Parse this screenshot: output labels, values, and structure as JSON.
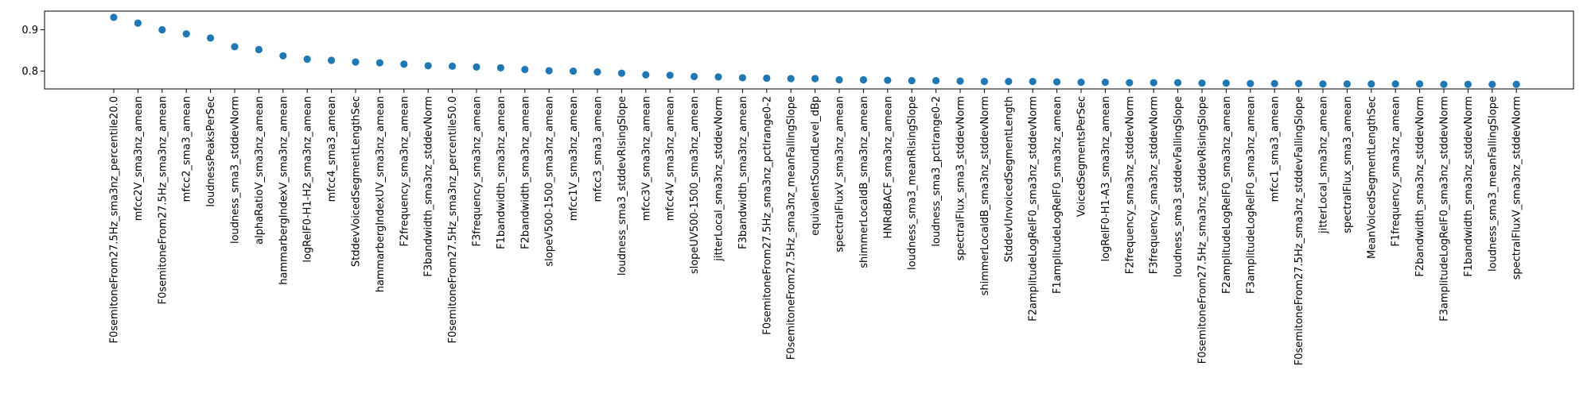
{
  "chart_data": {
    "type": "scatter",
    "title": "",
    "xlabel": "",
    "ylabel": "",
    "ylim": [
      0.757,
      0.945
    ],
    "yticks": [
      0.8,
      0.9
    ],
    "ytick_labels": [
      "0.8",
      "0.9"
    ],
    "grid": false,
    "legend": "none",
    "marker_color": "#1f77b4",
    "categories": [
      "F0semitoneFrom27.5Hz_sma3nz_percentile20.0",
      "mfcc2V_sma3nz_amean",
      "F0semitoneFrom27.5Hz_sma3nz_amean",
      "mfcc2_sma3_amean",
      "loudnessPeaksPerSec",
      "loudness_sma3_stddevNorm",
      "alphaRatioV_sma3nz_amean",
      "hammarbergIndexV_sma3nz_amean",
      "logRelF0-H1-H2_sma3nz_amean",
      "mfcc4_sma3_amean",
      "StddevVoicedSegmentLengthSec",
      "hammarbergIndexUV_sma3nz_amean",
      "F2frequency_sma3nz_amean",
      "F3bandwidth_sma3nz_stddevNorm",
      "F0semitoneFrom27.5Hz_sma3nz_percentile50.0",
      "F3frequency_sma3nz_amean",
      "F1bandwidth_sma3nz_amean",
      "F2bandwidth_sma3nz_amean",
      "slopeV500-1500_sma3nz_amean",
      "mfcc1V_sma3nz_amean",
      "mfcc3_sma3_amean",
      "loudness_sma3_stddevRisingSlope",
      "mfcc3V_sma3nz_amean",
      "mfcc4V_sma3nz_amean",
      "slopeUV500-1500_sma3nz_amean",
      "jitterLocal_sma3nz_stddevNorm",
      "F3bandwidth_sma3nz_amean",
      "F0semitoneFrom27.5Hz_sma3nz_pctlrange0-2",
      "F0semitoneFrom27.5Hz_sma3nz_meanFallingSlope",
      "equivalentSoundLevel_dBp",
      "spectralFluxV_sma3nz_amean",
      "shimmerLocaldB_sma3nz_amean",
      "HNRdBACF_sma3nz_amean",
      "loudness_sma3_meanRisingSlope",
      "loudness_sma3_pctlrange0-2",
      "spectralFlux_sma3_stddevNorm",
      "shimmerLocaldB_sma3nz_stddevNorm",
      "StddevUnvoicedSegmentLength",
      "F2amplitudeLogRelF0_sma3nz_stddevNorm",
      "F1amplitudeLogRelF0_sma3nz_amean",
      "VoicedSegmentsPerSec",
      "logRelF0-H1-A3_sma3nz_amean",
      "F2frequency_sma3nz_stddevNorm",
      "F3frequency_sma3nz_stddevNorm",
      "loudness_sma3_stddevFallingSlope",
      "F0semitoneFrom27.5Hz_sma3nz_stddevRisingSlope",
      "F2amplitudeLogRelF0_sma3nz_amean",
      "F3amplitudeLogRelF0_sma3nz_amean",
      "mfcc1_sma3_amean",
      "F0semitoneFrom27.5Hz_sma3nz_stddevFallingSlope",
      "jitterLocal_sma3nz_amean",
      "spectralFlux_sma3_amean",
      "MeanVoicedSegmentLengthSec",
      "F1frequency_sma3nz_amean",
      "F2bandwidth_sma3nz_stddevNorm",
      "F3amplitudeLogRelF0_sma3nz_stddevNorm",
      "F1bandwidth_sma3nz_stddevNorm",
      "loudness_sma3_meanFallingSlope",
      "spectralFluxV_sma3nz_stddevNorm"
    ],
    "values": [
      0.93,
      0.916,
      0.9,
      0.89,
      0.88,
      0.859,
      0.852,
      0.837,
      0.829,
      0.826,
      0.822,
      0.82,
      0.817,
      0.813,
      0.812,
      0.81,
      0.808,
      0.804,
      0.801,
      0.8,
      0.798,
      0.795,
      0.791,
      0.79,
      0.787,
      0.786,
      0.784,
      0.783,
      0.782,
      0.782,
      0.779,
      0.779,
      0.778,
      0.777,
      0.777,
      0.776,
      0.775,
      0.775,
      0.775,
      0.774,
      0.773,
      0.773,
      0.772,
      0.772,
      0.772,
      0.771,
      0.771,
      0.77,
      0.77,
      0.77,
      0.769,
      0.769,
      0.769,
      0.769,
      0.769,
      0.768,
      0.768,
      0.768,
      0.768
    ]
  }
}
